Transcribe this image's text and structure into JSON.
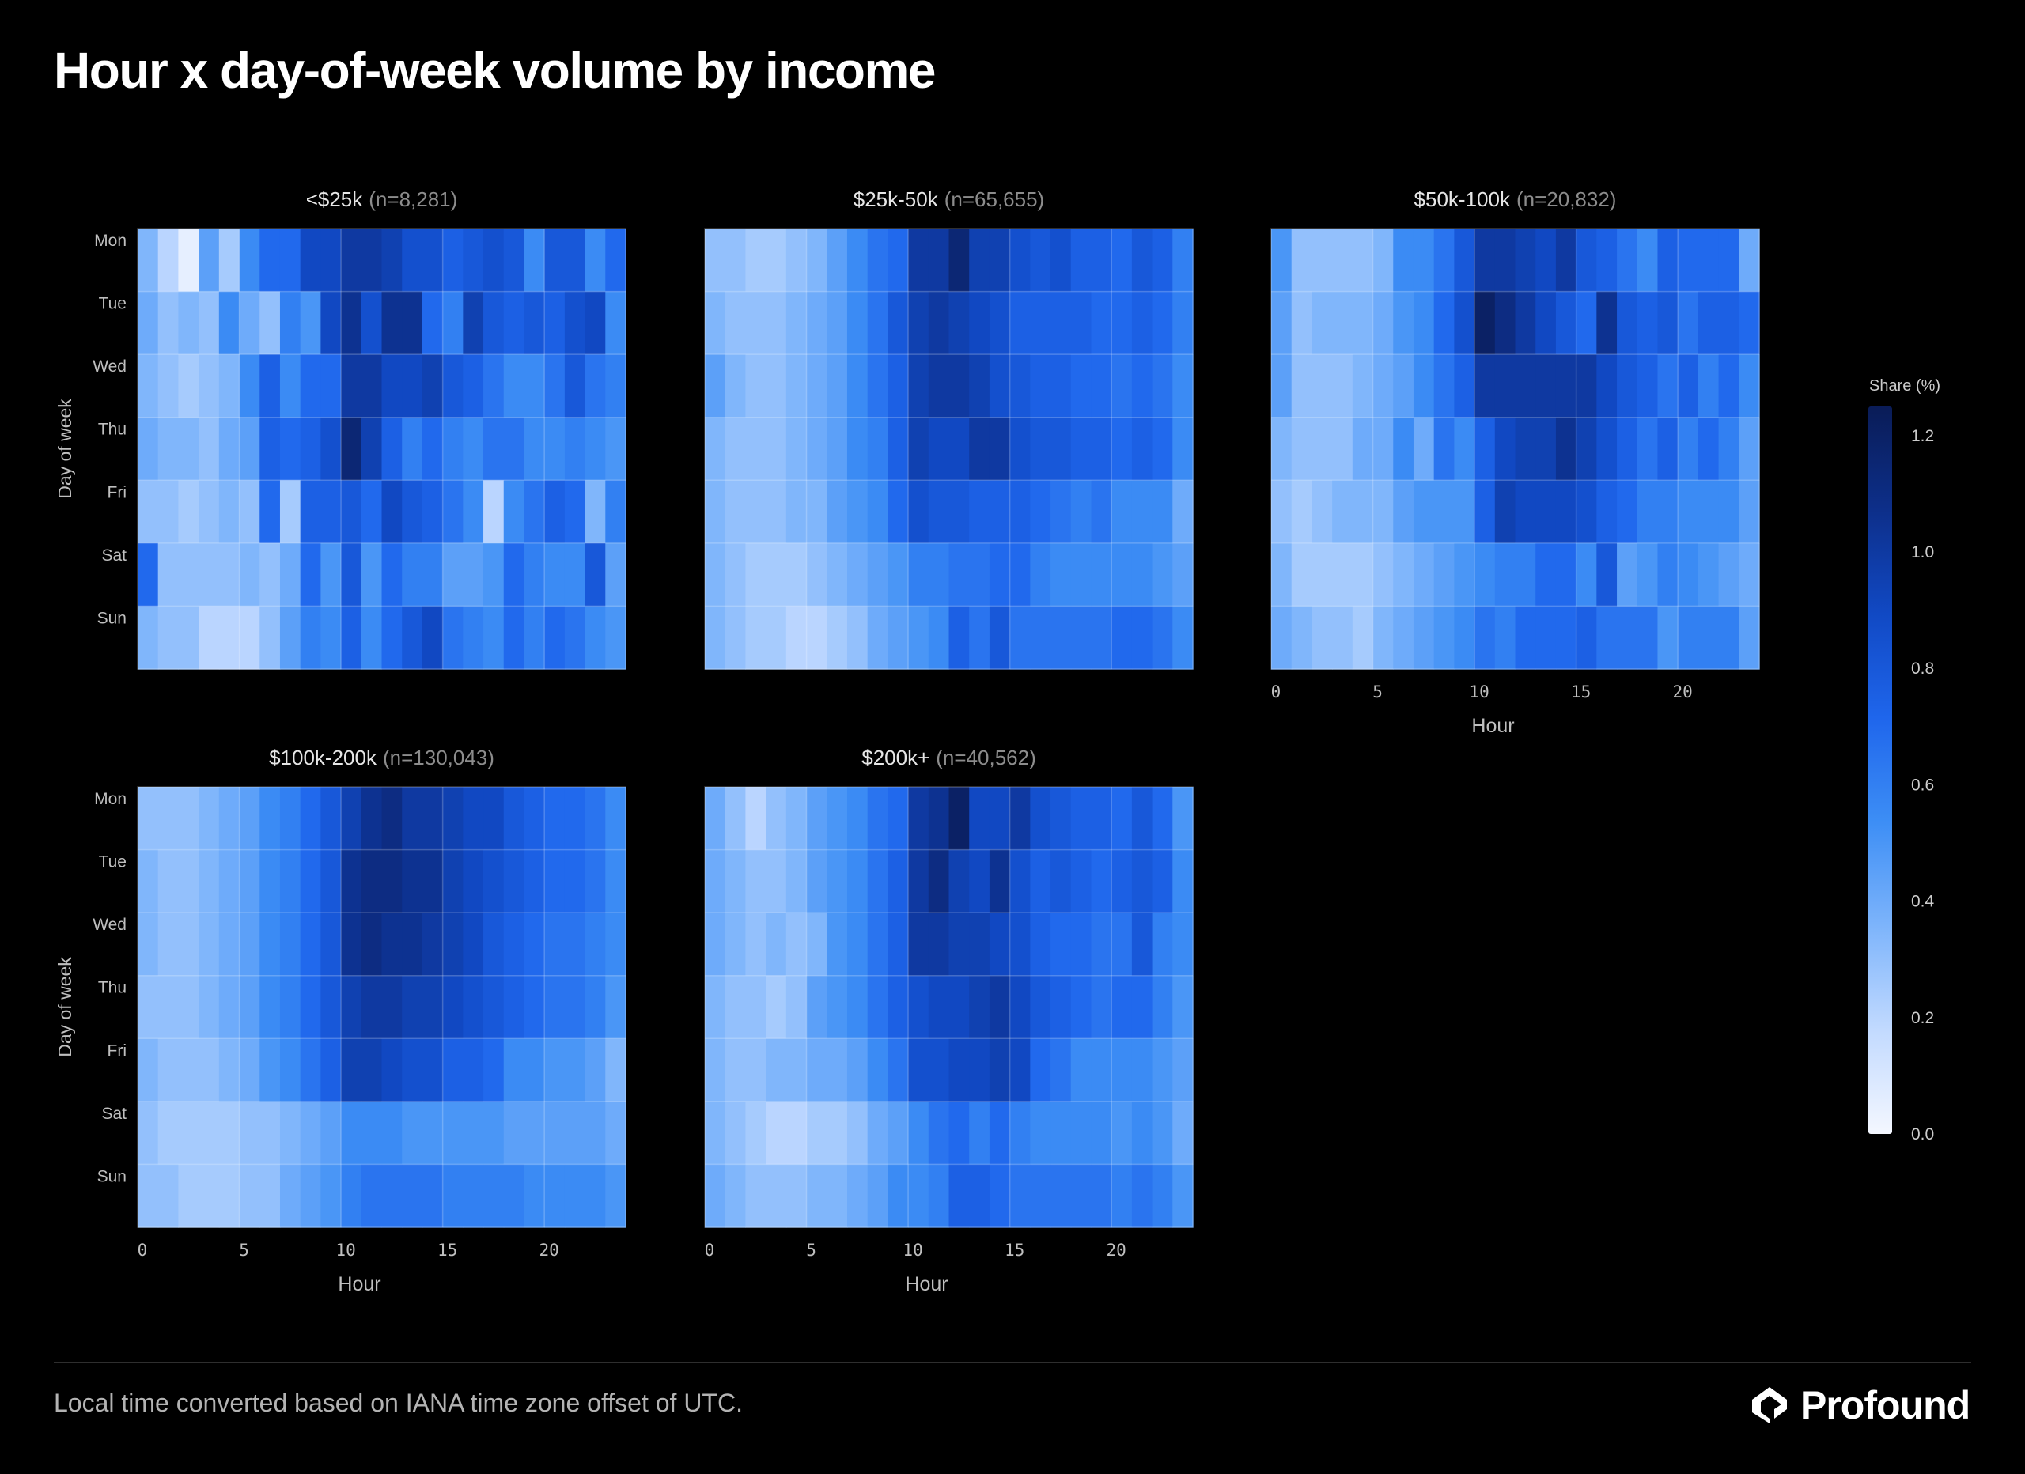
{
  "page": {
    "title": "Hour x day-of-week volume by income",
    "footnote": "Local time converted based on IANA time zone offset of UTC.",
    "brand": "Profound",
    "brand_icon": "profound-logo-icon"
  },
  "colors": {
    "background": "#000000",
    "scale": [
      "#f4f7ff",
      "#c2daff",
      "#7db4fb",
      "#3d8ef5",
      "#1f66ec",
      "#1149c4",
      "#0d2f8a",
      "#0a1c57"
    ]
  },
  "chart_data": {
    "type": "heatmap",
    "title": "Hour x day-of-week volume by income",
    "x": [
      0,
      1,
      2,
      3,
      4,
      5,
      6,
      7,
      8,
      9,
      10,
      11,
      12,
      13,
      14,
      15,
      16,
      17,
      18,
      19,
      20,
      21,
      22,
      23
    ],
    "y": [
      "Mon",
      "Tue",
      "Wed",
      "Thu",
      "Fri",
      "Sat",
      "Sun"
    ],
    "x_ticks": [
      0,
      5,
      10,
      15,
      20
    ],
    "xlabel": "Hour",
    "ylabel": "Day of week",
    "colorbar": {
      "label": "Share (%)",
      "range": [
        0,
        1.25
      ],
      "ticks": [
        0.0,
        0.2,
        0.4,
        0.6,
        0.8,
        1.0,
        1.2
      ]
    },
    "grid": true,
    "legend": "right",
    "panels": [
      {
        "name": "<$25k",
        "n": "(n=8,281)",
        "values": [
          [
            0.35,
            0.2,
            0.05,
            0.45,
            0.25,
            0.55,
            0.7,
            0.7,
            0.9,
            0.9,
            1.0,
            1.0,
            0.95,
            0.85,
            0.85,
            0.75,
            0.8,
            0.85,
            0.8,
            0.55,
            0.8,
            0.8,
            0.55,
            0.7
          ],
          [
            0.4,
            0.3,
            0.35,
            0.3,
            0.55,
            0.4,
            0.3,
            0.6,
            0.5,
            0.9,
            1.05,
            0.85,
            1.05,
            1.05,
            0.7,
            0.6,
            0.95,
            0.8,
            0.75,
            0.8,
            0.75,
            0.85,
            0.9,
            0.55
          ],
          [
            0.35,
            0.3,
            0.25,
            0.3,
            0.35,
            0.55,
            0.75,
            0.55,
            0.7,
            0.7,
            1.0,
            1.0,
            0.9,
            0.9,
            0.95,
            0.8,
            0.75,
            0.65,
            0.55,
            0.55,
            0.65,
            0.8,
            0.65,
            0.6
          ],
          [
            0.4,
            0.35,
            0.35,
            0.3,
            0.4,
            0.45,
            0.75,
            0.7,
            0.75,
            0.85,
            1.15,
            0.95,
            0.75,
            0.6,
            0.7,
            0.6,
            0.55,
            0.65,
            0.65,
            0.55,
            0.55,
            0.6,
            0.55,
            0.5
          ],
          [
            0.3,
            0.3,
            0.25,
            0.3,
            0.35,
            0.3,
            0.7,
            0.25,
            0.75,
            0.75,
            0.8,
            0.7,
            0.9,
            0.8,
            0.75,
            0.65,
            0.55,
            0.2,
            0.55,
            0.65,
            0.75,
            0.7,
            0.35,
            0.6
          ],
          [
            0.7,
            0.3,
            0.3,
            0.3,
            0.3,
            0.35,
            0.3,
            0.4,
            0.7,
            0.5,
            0.8,
            0.5,
            0.7,
            0.6,
            0.6,
            0.45,
            0.45,
            0.5,
            0.7,
            0.6,
            0.55,
            0.55,
            0.8,
            0.45
          ],
          [
            0.35,
            0.3,
            0.3,
            0.2,
            0.2,
            0.2,
            0.3,
            0.45,
            0.6,
            0.55,
            0.75,
            0.55,
            0.7,
            0.8,
            0.9,
            0.65,
            0.6,
            0.55,
            0.7,
            0.6,
            0.7,
            0.65,
            0.55,
            0.5
          ]
        ]
      },
      {
        "name": "$25k-50k",
        "n": "(n=65,655)",
        "values": [
          [
            0.3,
            0.3,
            0.25,
            0.25,
            0.3,
            0.35,
            0.45,
            0.55,
            0.65,
            0.7,
            1.0,
            1.0,
            1.15,
            0.95,
            0.95,
            0.85,
            0.8,
            0.85,
            0.75,
            0.75,
            0.7,
            0.8,
            0.75,
            0.6
          ],
          [
            0.35,
            0.3,
            0.3,
            0.3,
            0.35,
            0.4,
            0.45,
            0.55,
            0.65,
            0.8,
            0.95,
            1.0,
            0.95,
            0.9,
            0.85,
            0.75,
            0.75,
            0.75,
            0.75,
            0.7,
            0.7,
            0.75,
            0.7,
            0.6
          ],
          [
            0.45,
            0.35,
            0.3,
            0.3,
            0.35,
            0.4,
            0.45,
            0.55,
            0.65,
            0.75,
            0.95,
            1.0,
            1.0,
            0.95,
            0.85,
            0.8,
            0.75,
            0.75,
            0.7,
            0.7,
            0.65,
            0.7,
            0.65,
            0.55
          ],
          [
            0.35,
            0.3,
            0.3,
            0.3,
            0.35,
            0.4,
            0.45,
            0.55,
            0.6,
            0.75,
            0.95,
            0.9,
            0.9,
            1.0,
            1.0,
            0.85,
            0.8,
            0.8,
            0.75,
            0.75,
            0.7,
            0.75,
            0.7,
            0.55
          ],
          [
            0.35,
            0.3,
            0.3,
            0.3,
            0.35,
            0.35,
            0.45,
            0.5,
            0.55,
            0.7,
            0.85,
            0.8,
            0.8,
            0.75,
            0.75,
            0.75,
            0.7,
            0.65,
            0.6,
            0.65,
            0.55,
            0.55,
            0.55,
            0.4
          ],
          [
            0.35,
            0.3,
            0.25,
            0.25,
            0.25,
            0.3,
            0.35,
            0.4,
            0.45,
            0.5,
            0.6,
            0.6,
            0.65,
            0.65,
            0.7,
            0.7,
            0.6,
            0.55,
            0.55,
            0.55,
            0.55,
            0.55,
            0.5,
            0.45
          ],
          [
            0.35,
            0.3,
            0.25,
            0.25,
            0.2,
            0.2,
            0.25,
            0.3,
            0.4,
            0.45,
            0.5,
            0.55,
            0.75,
            0.65,
            0.8,
            0.65,
            0.65,
            0.65,
            0.65,
            0.65,
            0.7,
            0.7,
            0.65,
            0.55
          ]
        ]
      },
      {
        "name": "$50k-100k",
        "n": "(n=20,832)",
        "values": [
          [
            0.5,
            0.3,
            0.3,
            0.3,
            0.3,
            0.35,
            0.55,
            0.55,
            0.65,
            0.8,
            1.0,
            1.0,
            0.95,
            0.9,
            1.0,
            0.8,
            0.75,
            0.65,
            0.55,
            0.75,
            0.7,
            0.7,
            0.7,
            0.4
          ],
          [
            0.45,
            0.3,
            0.35,
            0.35,
            0.35,
            0.4,
            0.5,
            0.55,
            0.7,
            0.85,
            1.2,
            1.1,
            1.0,
            0.9,
            0.8,
            0.7,
            1.05,
            0.8,
            0.75,
            0.8,
            0.65,
            0.75,
            0.75,
            0.7
          ],
          [
            0.45,
            0.3,
            0.3,
            0.3,
            0.35,
            0.4,
            0.45,
            0.55,
            0.65,
            0.75,
            1.0,
            1.0,
            1.0,
            1.0,
            1.0,
            1.0,
            0.9,
            0.8,
            0.75,
            0.65,
            0.75,
            0.6,
            0.7,
            0.55
          ],
          [
            0.35,
            0.3,
            0.3,
            0.3,
            0.4,
            0.4,
            0.55,
            0.4,
            0.65,
            0.55,
            0.75,
            0.9,
            0.95,
            0.95,
            1.05,
            0.95,
            0.85,
            0.75,
            0.65,
            0.75,
            0.6,
            0.7,
            0.6,
            0.45
          ],
          [
            0.3,
            0.25,
            0.3,
            0.35,
            0.35,
            0.35,
            0.45,
            0.5,
            0.5,
            0.5,
            0.75,
            0.95,
            0.9,
            0.9,
            0.9,
            0.85,
            0.75,
            0.7,
            0.6,
            0.6,
            0.55,
            0.55,
            0.55,
            0.45
          ],
          [
            0.35,
            0.25,
            0.25,
            0.25,
            0.25,
            0.3,
            0.35,
            0.4,
            0.45,
            0.5,
            0.55,
            0.6,
            0.6,
            0.7,
            0.7,
            0.55,
            0.8,
            0.45,
            0.5,
            0.6,
            0.55,
            0.5,
            0.45,
            0.4
          ],
          [
            0.4,
            0.35,
            0.3,
            0.3,
            0.25,
            0.35,
            0.4,
            0.45,
            0.5,
            0.55,
            0.65,
            0.6,
            0.7,
            0.7,
            0.7,
            0.75,
            0.65,
            0.65,
            0.65,
            0.5,
            0.6,
            0.6,
            0.6,
            0.45
          ]
        ]
      },
      {
        "name": "$100k-200k",
        "n": "(n=130,043)",
        "values": [
          [
            0.3,
            0.3,
            0.3,
            0.35,
            0.4,
            0.45,
            0.55,
            0.6,
            0.7,
            0.8,
            0.95,
            1.05,
            1.1,
            1.0,
            1.0,
            0.95,
            0.9,
            0.9,
            0.8,
            0.75,
            0.7,
            0.7,
            0.65,
            0.55
          ],
          [
            0.35,
            0.3,
            0.3,
            0.35,
            0.4,
            0.45,
            0.55,
            0.6,
            0.7,
            0.8,
            1.05,
            1.1,
            1.1,
            1.05,
            1.05,
            0.95,
            0.9,
            0.85,
            0.8,
            0.75,
            0.7,
            0.7,
            0.65,
            0.55
          ],
          [
            0.35,
            0.3,
            0.3,
            0.35,
            0.4,
            0.45,
            0.55,
            0.6,
            0.7,
            0.8,
            1.05,
            1.1,
            1.05,
            1.05,
            1.0,
            0.95,
            0.9,
            0.8,
            0.75,
            0.7,
            0.65,
            0.65,
            0.6,
            0.55
          ],
          [
            0.3,
            0.3,
            0.3,
            0.35,
            0.4,
            0.45,
            0.55,
            0.6,
            0.7,
            0.8,
            0.95,
            1.0,
            1.0,
            0.95,
            0.95,
            0.9,
            0.85,
            0.8,
            0.75,
            0.7,
            0.65,
            0.65,
            0.6,
            0.5
          ],
          [
            0.35,
            0.3,
            0.3,
            0.3,
            0.35,
            0.4,
            0.5,
            0.55,
            0.65,
            0.75,
            0.95,
            0.95,
            0.9,
            0.85,
            0.85,
            0.75,
            0.75,
            0.7,
            0.55,
            0.55,
            0.5,
            0.5,
            0.45,
            0.35
          ],
          [
            0.3,
            0.25,
            0.25,
            0.25,
            0.25,
            0.3,
            0.3,
            0.35,
            0.4,
            0.45,
            0.55,
            0.55,
            0.55,
            0.5,
            0.5,
            0.5,
            0.5,
            0.5,
            0.45,
            0.45,
            0.45,
            0.45,
            0.45,
            0.4
          ],
          [
            0.3,
            0.3,
            0.25,
            0.25,
            0.25,
            0.3,
            0.3,
            0.4,
            0.45,
            0.5,
            0.6,
            0.65,
            0.65,
            0.65,
            0.65,
            0.6,
            0.6,
            0.6,
            0.6,
            0.55,
            0.55,
            0.55,
            0.55,
            0.5
          ]
        ]
      },
      {
        "name": "$200k+",
        "n": "(n=40,562)",
        "values": [
          [
            0.4,
            0.3,
            0.2,
            0.3,
            0.35,
            0.45,
            0.5,
            0.55,
            0.65,
            0.7,
            1.0,
            1.05,
            1.2,
            0.9,
            0.9,
            1.0,
            0.85,
            0.8,
            0.75,
            0.75,
            0.7,
            0.8,
            0.7,
            0.5
          ],
          [
            0.4,
            0.35,
            0.3,
            0.3,
            0.35,
            0.45,
            0.5,
            0.55,
            0.65,
            0.75,
            1.0,
            1.1,
            0.95,
            0.9,
            1.05,
            0.85,
            0.75,
            0.8,
            0.75,
            0.7,
            0.75,
            0.8,
            0.75,
            0.55
          ],
          [
            0.4,
            0.35,
            0.3,
            0.35,
            0.3,
            0.35,
            0.5,
            0.55,
            0.65,
            0.75,
            1.0,
            1.0,
            0.95,
            0.95,
            0.9,
            0.85,
            0.75,
            0.7,
            0.7,
            0.65,
            0.65,
            0.8,
            0.6,
            0.55
          ],
          [
            0.35,
            0.3,
            0.3,
            0.25,
            0.3,
            0.45,
            0.5,
            0.55,
            0.65,
            0.75,
            0.85,
            0.9,
            0.9,
            0.95,
            1.0,
            0.9,
            0.8,
            0.75,
            0.7,
            0.65,
            0.7,
            0.7,
            0.6,
            0.5
          ],
          [
            0.35,
            0.3,
            0.3,
            0.35,
            0.35,
            0.4,
            0.4,
            0.45,
            0.55,
            0.65,
            0.85,
            0.85,
            0.9,
            0.9,
            0.95,
            0.9,
            0.7,
            0.65,
            0.55,
            0.55,
            0.55,
            0.55,
            0.5,
            0.45
          ],
          [
            0.35,
            0.3,
            0.25,
            0.2,
            0.2,
            0.25,
            0.25,
            0.3,
            0.4,
            0.45,
            0.55,
            0.65,
            0.7,
            0.6,
            0.7,
            0.6,
            0.55,
            0.55,
            0.55,
            0.55,
            0.5,
            0.55,
            0.5,
            0.4
          ],
          [
            0.4,
            0.35,
            0.3,
            0.3,
            0.3,
            0.35,
            0.35,
            0.4,
            0.45,
            0.55,
            0.55,
            0.6,
            0.75,
            0.75,
            0.7,
            0.65,
            0.65,
            0.65,
            0.65,
            0.65,
            0.6,
            0.65,
            0.6,
            0.5
          ]
        ]
      }
    ]
  }
}
